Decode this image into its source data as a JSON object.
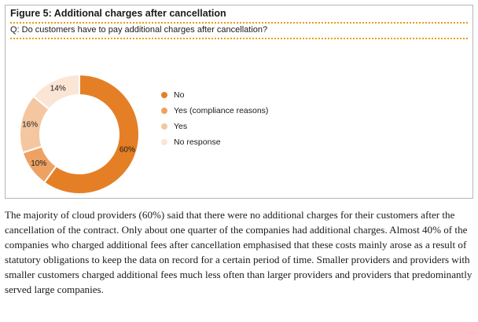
{
  "figure": {
    "title": "Figure 5: Additional charges after cancellation",
    "question": "Q: Do customers have to pay additional charges after cancellation?"
  },
  "chart_data": {
    "type": "pie",
    "donut": true,
    "legend_position": "right",
    "slices": [
      {
        "name": "No",
        "value": 60,
        "label": "60%",
        "color": "#e57f26"
      },
      {
        "name": "Yes (compliance reasons)",
        "value": 10,
        "label": "10%",
        "color": "#eda263"
      },
      {
        "name": "Yes",
        "value": 16,
        "label": "16%",
        "color": "#f5c7a0"
      },
      {
        "name": "No response",
        "value": 14,
        "label": "14%",
        "color": "#fbe6d6"
      }
    ]
  },
  "body": {
    "paragraph": "The majority of cloud providers (60%) said that there were no additional charges for their customers after the cancellation of the contract. Only about one quarter of the companies had additional charges. Almost 40% of the companies who charged additional fees after cancellation emphasised that these costs mainly arose as a result of statutory obligations to keep the data on record for a certain period of time. Smaller providers and providers with smaller customers charged additional fees much less often than larger providers and providers that predominantly served large companies."
  }
}
